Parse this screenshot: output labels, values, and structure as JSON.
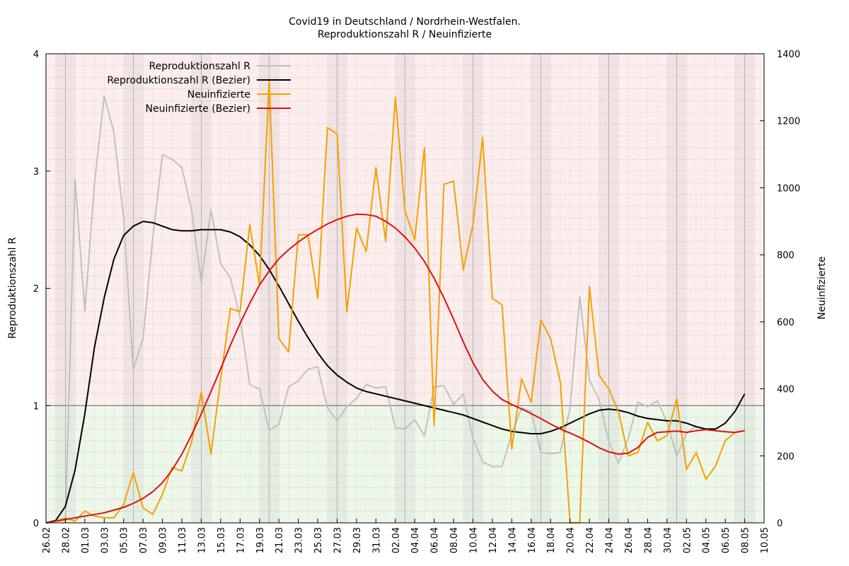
{
  "chart_data": {
    "type": "line",
    "title": "Covid19 in Deutschland / Nordrhein-Westfalen.",
    "subtitle": "Reproduktionszahl R / Neuinfizierte",
    "ylabel": "Reproduktionszahl R",
    "y2label": "Neuinfizierte",
    "ylim": [
      0,
      4
    ],
    "y2lim": [
      0,
      1400
    ],
    "yticks": [
      "0",
      "1",
      "2",
      "3",
      "4"
    ],
    "y2ticks": [
      "0",
      "200",
      "400",
      "600",
      "800",
      "1000",
      "1200",
      "1400"
    ],
    "xticks": [
      "26.02",
      "28.02",
      "01.03",
      "03.03",
      "05.03",
      "07.03",
      "09.03",
      "11.03",
      "13.03",
      "15.03",
      "17.03",
      "19.03",
      "21.03",
      "23.03",
      "25.03",
      "27.03",
      "29.03",
      "31.03",
      "02.04",
      "04.04",
      "06.04",
      "08.04",
      "10.04",
      "12.04",
      "14.04",
      "16.04",
      "18.04",
      "20.04",
      "22.04",
      "24.04",
      "26.04",
      "28.04",
      "30.04",
      "02.05",
      "04.05",
      "06.05",
      "08.05",
      "10.05"
    ],
    "threshold": 1,
    "zones": {
      "above_color": "#fdeeee",
      "below_color": "#eef8ea"
    },
    "grid": true,
    "legend_position": "top-left",
    "series": [
      {
        "name": "Reproduktionszahl R",
        "axis": "left",
        "color": "#c0c0c0",
        "values": [
          [
            2.0,
            0
          ],
          [
            3.0,
            2.93
          ],
          [
            4.0,
            1.8
          ],
          [
            5.0,
            2.9
          ],
          [
            6.0,
            3.64
          ],
          [
            7.0,
            3.33
          ],
          [
            8.0,
            2.6
          ],
          [
            9.0,
            1.31
          ],
          [
            10.0,
            1.57
          ],
          [
            11.0,
            2.43
          ],
          [
            12.0,
            3.14
          ],
          [
            13.0,
            3.1
          ],
          [
            14.0,
            3.03
          ],
          [
            15.0,
            2.67
          ],
          [
            16.0,
            2.05
          ],
          [
            17.0,
            2.67
          ],
          [
            18.0,
            2.21
          ],
          [
            19.0,
            2.09
          ],
          [
            20.0,
            1.75
          ],
          [
            21.0,
            1.18
          ],
          [
            22.0,
            1.14
          ],
          [
            23.0,
            0.79
          ],
          [
            24.0,
            0.84
          ],
          [
            25.0,
            1.16
          ],
          [
            26.0,
            1.21
          ],
          [
            27.0,
            1.31
          ],
          [
            28.0,
            1.33
          ],
          [
            29.0,
            0.98
          ],
          [
            30.0,
            0.87
          ],
          [
            31.0,
            0.99
          ],
          [
            32.0,
            1.06
          ],
          [
            33.0,
            1.18
          ],
          [
            34.0,
            1.15
          ],
          [
            35.0,
            1.16
          ],
          [
            36.0,
            0.81
          ],
          [
            37.0,
            0.8
          ],
          [
            38.0,
            0.88
          ],
          [
            39.0,
            0.74
          ],
          [
            40.0,
            1.16
          ],
          [
            41.0,
            1.17
          ],
          [
            42.0,
            1.01
          ],
          [
            43.0,
            1.1
          ],
          [
            44.0,
            0.72
          ],
          [
            45.0,
            0.52
          ],
          [
            46.0,
            0.48
          ],
          [
            47.0,
            0.48
          ],
          [
            48.0,
            0.76
          ],
          [
            49.0,
            0.98
          ],
          [
            50.0,
            0.95
          ],
          [
            51.0,
            0.6
          ],
          [
            52.0,
            0.59
          ],
          [
            53.0,
            0.6
          ],
          [
            54.0,
            0.98
          ],
          [
            55.0,
            1.93
          ],
          [
            56.0,
            1.22
          ],
          [
            57.0,
            1.05
          ],
          [
            58.0,
            0.69
          ],
          [
            59.0,
            0.51
          ],
          [
            60.0,
            0.72
          ],
          [
            61.0,
            1.03
          ],
          [
            62.0,
            0.99
          ],
          [
            63.0,
            1.04
          ],
          [
            64.0,
            0.86
          ],
          [
            65.0,
            0.57
          ],
          [
            66.0,
            0.76
          ],
          [
            67.0,
            0.83
          ]
        ]
      },
      {
        "name": "Reproduktionszahl R (Bezier)",
        "axis": "left",
        "color": "#000000",
        "values": [
          [
            0.0,
            0.0
          ],
          [
            1.0,
            0.02
          ],
          [
            2.0,
            0.14
          ],
          [
            3.0,
            0.45
          ],
          [
            4.0,
            0.93
          ],
          [
            5.0,
            1.5
          ],
          [
            6.0,
            1.92
          ],
          [
            7.0,
            2.25
          ],
          [
            8.0,
            2.45
          ],
          [
            9.0,
            2.53
          ],
          [
            10.0,
            2.57
          ],
          [
            11.0,
            2.56
          ],
          [
            12.0,
            2.53
          ],
          [
            13.0,
            2.5
          ],
          [
            14.0,
            2.49
          ],
          [
            15.0,
            2.49
          ],
          [
            16.0,
            2.5
          ],
          [
            17.0,
            2.5
          ],
          [
            18.0,
            2.5
          ],
          [
            19.0,
            2.48
          ],
          [
            20.0,
            2.44
          ],
          [
            21.0,
            2.37
          ],
          [
            22.0,
            2.28
          ],
          [
            23.0,
            2.16
          ],
          [
            24.0,
            2.02
          ],
          [
            25.0,
            1.87
          ],
          [
            26.0,
            1.72
          ],
          [
            27.0,
            1.58
          ],
          [
            28.0,
            1.45
          ],
          [
            29.0,
            1.34
          ],
          [
            30.0,
            1.26
          ],
          [
            31.0,
            1.2
          ],
          [
            32.0,
            1.15
          ],
          [
            33.0,
            1.12
          ],
          [
            34.0,
            1.1
          ],
          [
            35.0,
            1.08
          ],
          [
            36.0,
            1.06
          ],
          [
            37.0,
            1.04
          ],
          [
            38.0,
            1.02
          ],
          [
            39.0,
            1.0
          ],
          [
            40.0,
            0.98
          ],
          [
            41.0,
            0.96
          ],
          [
            42.0,
            0.94
          ],
          [
            43.0,
            0.92
          ],
          [
            44.0,
            0.89
          ],
          [
            45.0,
            0.86
          ],
          [
            46.0,
            0.83
          ],
          [
            47.0,
            0.8
          ],
          [
            48.0,
            0.78
          ],
          [
            49.0,
            0.77
          ],
          [
            50.0,
            0.76
          ],
          [
            51.0,
            0.76
          ],
          [
            52.0,
            0.78
          ],
          [
            53.0,
            0.81
          ],
          [
            54.0,
            0.85
          ],
          [
            55.0,
            0.89
          ],
          [
            56.0,
            0.93
          ],
          [
            57.0,
            0.96
          ],
          [
            58.0,
            0.97
          ],
          [
            59.0,
            0.96
          ],
          [
            60.0,
            0.94
          ],
          [
            61.0,
            0.91
          ],
          [
            62.0,
            0.89
          ],
          [
            63.0,
            0.88
          ],
          [
            64.0,
            0.87
          ],
          [
            65.0,
            0.87
          ],
          [
            66.0,
            0.85
          ],
          [
            67.0,
            0.82
          ],
          [
            68.0,
            0.8
          ],
          [
            69.0,
            0.8
          ],
          [
            70.0,
            0.85
          ],
          [
            71.0,
            0.95
          ],
          [
            72.0,
            1.1
          ]
        ]
      },
      {
        "name": "Neuinfizierte",
        "axis": "right",
        "color": "#f5a000",
        "values": [
          [
            1.0,
            5
          ],
          [
            2.0,
            15
          ],
          [
            3.0,
            5
          ],
          [
            4.0,
            35
          ],
          [
            5.0,
            20
          ],
          [
            6.0,
            15
          ],
          [
            7.0,
            15
          ],
          [
            8.0,
            55
          ],
          [
            9.0,
            150
          ],
          [
            10.0,
            45
          ],
          [
            11.0,
            25
          ],
          [
            12.0,
            85
          ],
          [
            13.0,
            165
          ],
          [
            14.0,
            155
          ],
          [
            15.0,
            240
          ],
          [
            16.0,
            390
          ],
          [
            17.0,
            205
          ],
          [
            18.0,
            430
          ],
          [
            19.0,
            640
          ],
          [
            20.0,
            630
          ],
          [
            21.0,
            890
          ],
          [
            22.0,
            710
          ],
          [
            23.0,
            1320
          ],
          [
            24.0,
            550
          ],
          [
            25.0,
            510
          ],
          [
            26.0,
            860
          ],
          [
            27.0,
            860
          ],
          [
            28.0,
            670
          ],
          [
            29.0,
            1180
          ],
          [
            30.0,
            1160
          ],
          [
            31.0,
            630
          ],
          [
            32.0,
            880
          ],
          [
            33.0,
            810
          ],
          [
            34.0,
            1060
          ],
          [
            35.0,
            840
          ],
          [
            36.0,
            1270
          ],
          [
            37.0,
            930
          ],
          [
            38.0,
            845
          ],
          [
            39.0,
            1120
          ],
          [
            40.0,
            290
          ],
          [
            41.0,
            1010
          ],
          [
            42.0,
            1020
          ],
          [
            43.0,
            755
          ],
          [
            44.0,
            890
          ],
          [
            45.0,
            1150
          ],
          [
            46.0,
            670
          ],
          [
            47.0,
            650
          ],
          [
            48.0,
            220
          ],
          [
            49.0,
            430
          ],
          [
            50.0,
            360
          ],
          [
            51.0,
            605
          ],
          [
            52.0,
            550
          ],
          [
            53.0,
            420
          ],
          [
            54.0,
            0
          ],
          [
            55.0,
            0
          ],
          [
            56.0,
            705
          ],
          [
            57.0,
            440
          ],
          [
            58.0,
            400
          ],
          [
            59.0,
            330
          ],
          [
            60.0,
            200
          ],
          [
            61.0,
            210
          ],
          [
            62.0,
            300
          ],
          [
            63.0,
            245
          ],
          [
            64.0,
            260
          ],
          [
            65.0,
            370
          ],
          [
            66.0,
            160
          ],
          [
            67.0,
            210
          ],
          [
            68.0,
            130
          ],
          [
            69.0,
            170
          ],
          [
            70.0,
            245
          ],
          [
            71.0,
            270
          ],
          [
            72.0,
            275
          ]
        ]
      },
      {
        "name": "Neuinfizierte (Bezier)",
        "axis": "right",
        "color": "#e01010",
        "values": [
          [
            0.0,
            0
          ],
          [
            1.0,
            5
          ],
          [
            2.0,
            10
          ],
          [
            3.0,
            15
          ],
          [
            4.0,
            20
          ],
          [
            5.0,
            25
          ],
          [
            6.0,
            30
          ],
          [
            7.0,
            38
          ],
          [
            8.0,
            46
          ],
          [
            9.0,
            58
          ],
          [
            10.0,
            73
          ],
          [
            11.0,
            93
          ],
          [
            12.0,
            120
          ],
          [
            13.0,
            158
          ],
          [
            14.0,
            205
          ],
          [
            15.0,
            262
          ],
          [
            16.0,
            325
          ],
          [
            17.0,
            392
          ],
          [
            18.0,
            460
          ],
          [
            19.0,
            530
          ],
          [
            20.0,
            595
          ],
          [
            21.0,
            655
          ],
          [
            22.0,
            710
          ],
          [
            23.0,
            752
          ],
          [
            24.0,
            788
          ],
          [
            25.0,
            815
          ],
          [
            26.0,
            838
          ],
          [
            27.0,
            858
          ],
          [
            28.0,
            876
          ],
          [
            29.0,
            892
          ],
          [
            30.0,
            905
          ],
          [
            31.0,
            915
          ],
          [
            32.0,
            921
          ],
          [
            33.0,
            920
          ],
          [
            34.0,
            915
          ],
          [
            35.0,
            900
          ],
          [
            36.0,
            880
          ],
          [
            37.0,
            853
          ],
          [
            38.0,
            820
          ],
          [
            39.0,
            780
          ],
          [
            40.0,
            730
          ],
          [
            41.0,
            672
          ],
          [
            42.0,
            608
          ],
          [
            43.0,
            540
          ],
          [
            44.0,
            478
          ],
          [
            45.0,
            428
          ],
          [
            46.0,
            393
          ],
          [
            47.0,
            368
          ],
          [
            48.0,
            353
          ],
          [
            49.0,
            340
          ],
          [
            50.0,
            326
          ],
          [
            51.0,
            311
          ],
          [
            52.0,
            295
          ],
          [
            53.0,
            280
          ],
          [
            54.0,
            268
          ],
          [
            55.0,
            255
          ],
          [
            56.0,
            240
          ],
          [
            57.0,
            224
          ],
          [
            58.0,
            212
          ],
          [
            59.0,
            205
          ],
          [
            60.0,
            208
          ],
          [
            61.0,
            225
          ],
          [
            62.0,
            255
          ],
          [
            63.0,
            270
          ],
          [
            64.0,
            272
          ],
          [
            65.0,
            274
          ],
          [
            66.0,
            270
          ],
          [
            67.0,
            275
          ],
          [
            68.0,
            278
          ],
          [
            69.0,
            275
          ],
          [
            70.0,
            272
          ],
          [
            71.0,
            270
          ],
          [
            72.0,
            275
          ]
        ]
      }
    ]
  }
}
